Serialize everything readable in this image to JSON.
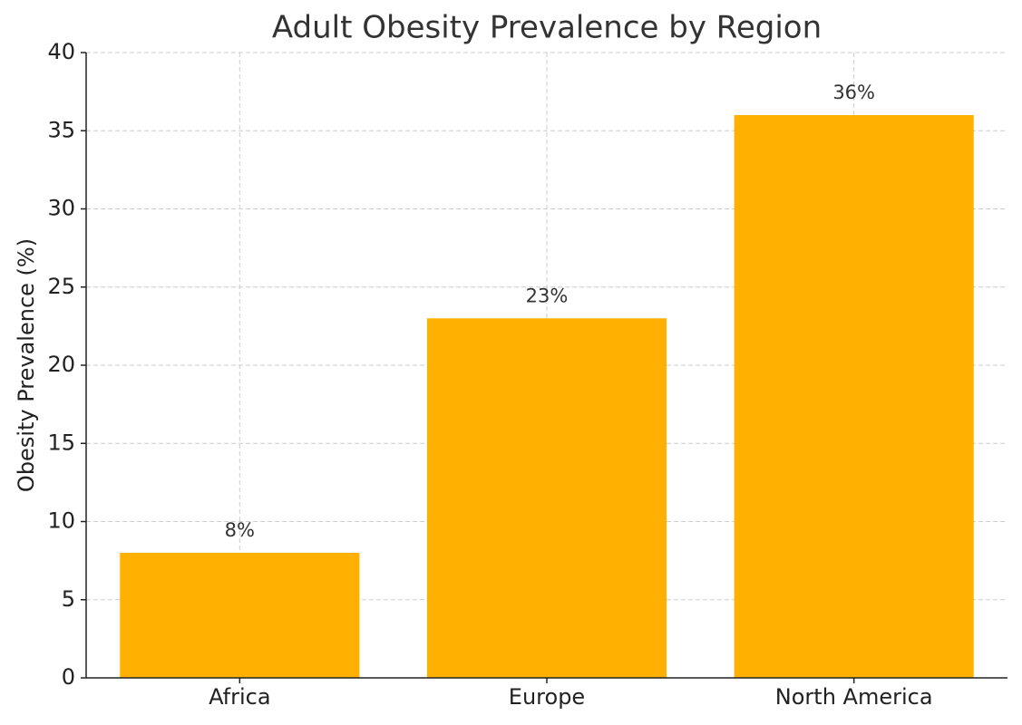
{
  "chart_data": {
    "type": "bar",
    "title": "Adult Obesity Prevalence by Region",
    "y_label": "Obesity Prevalence (%)",
    "categories": [
      "Africa",
      "Europe",
      "North America"
    ],
    "values": [
      8,
      23,
      36
    ],
    "value_labels": [
      "8%",
      "23%",
      "36%"
    ],
    "color": "#ffb000",
    "ylim": [
      0,
      40
    ],
    "yticks": [
      0,
      5,
      10,
      15,
      20,
      25,
      30,
      35,
      40
    ],
    "grid": true
  }
}
